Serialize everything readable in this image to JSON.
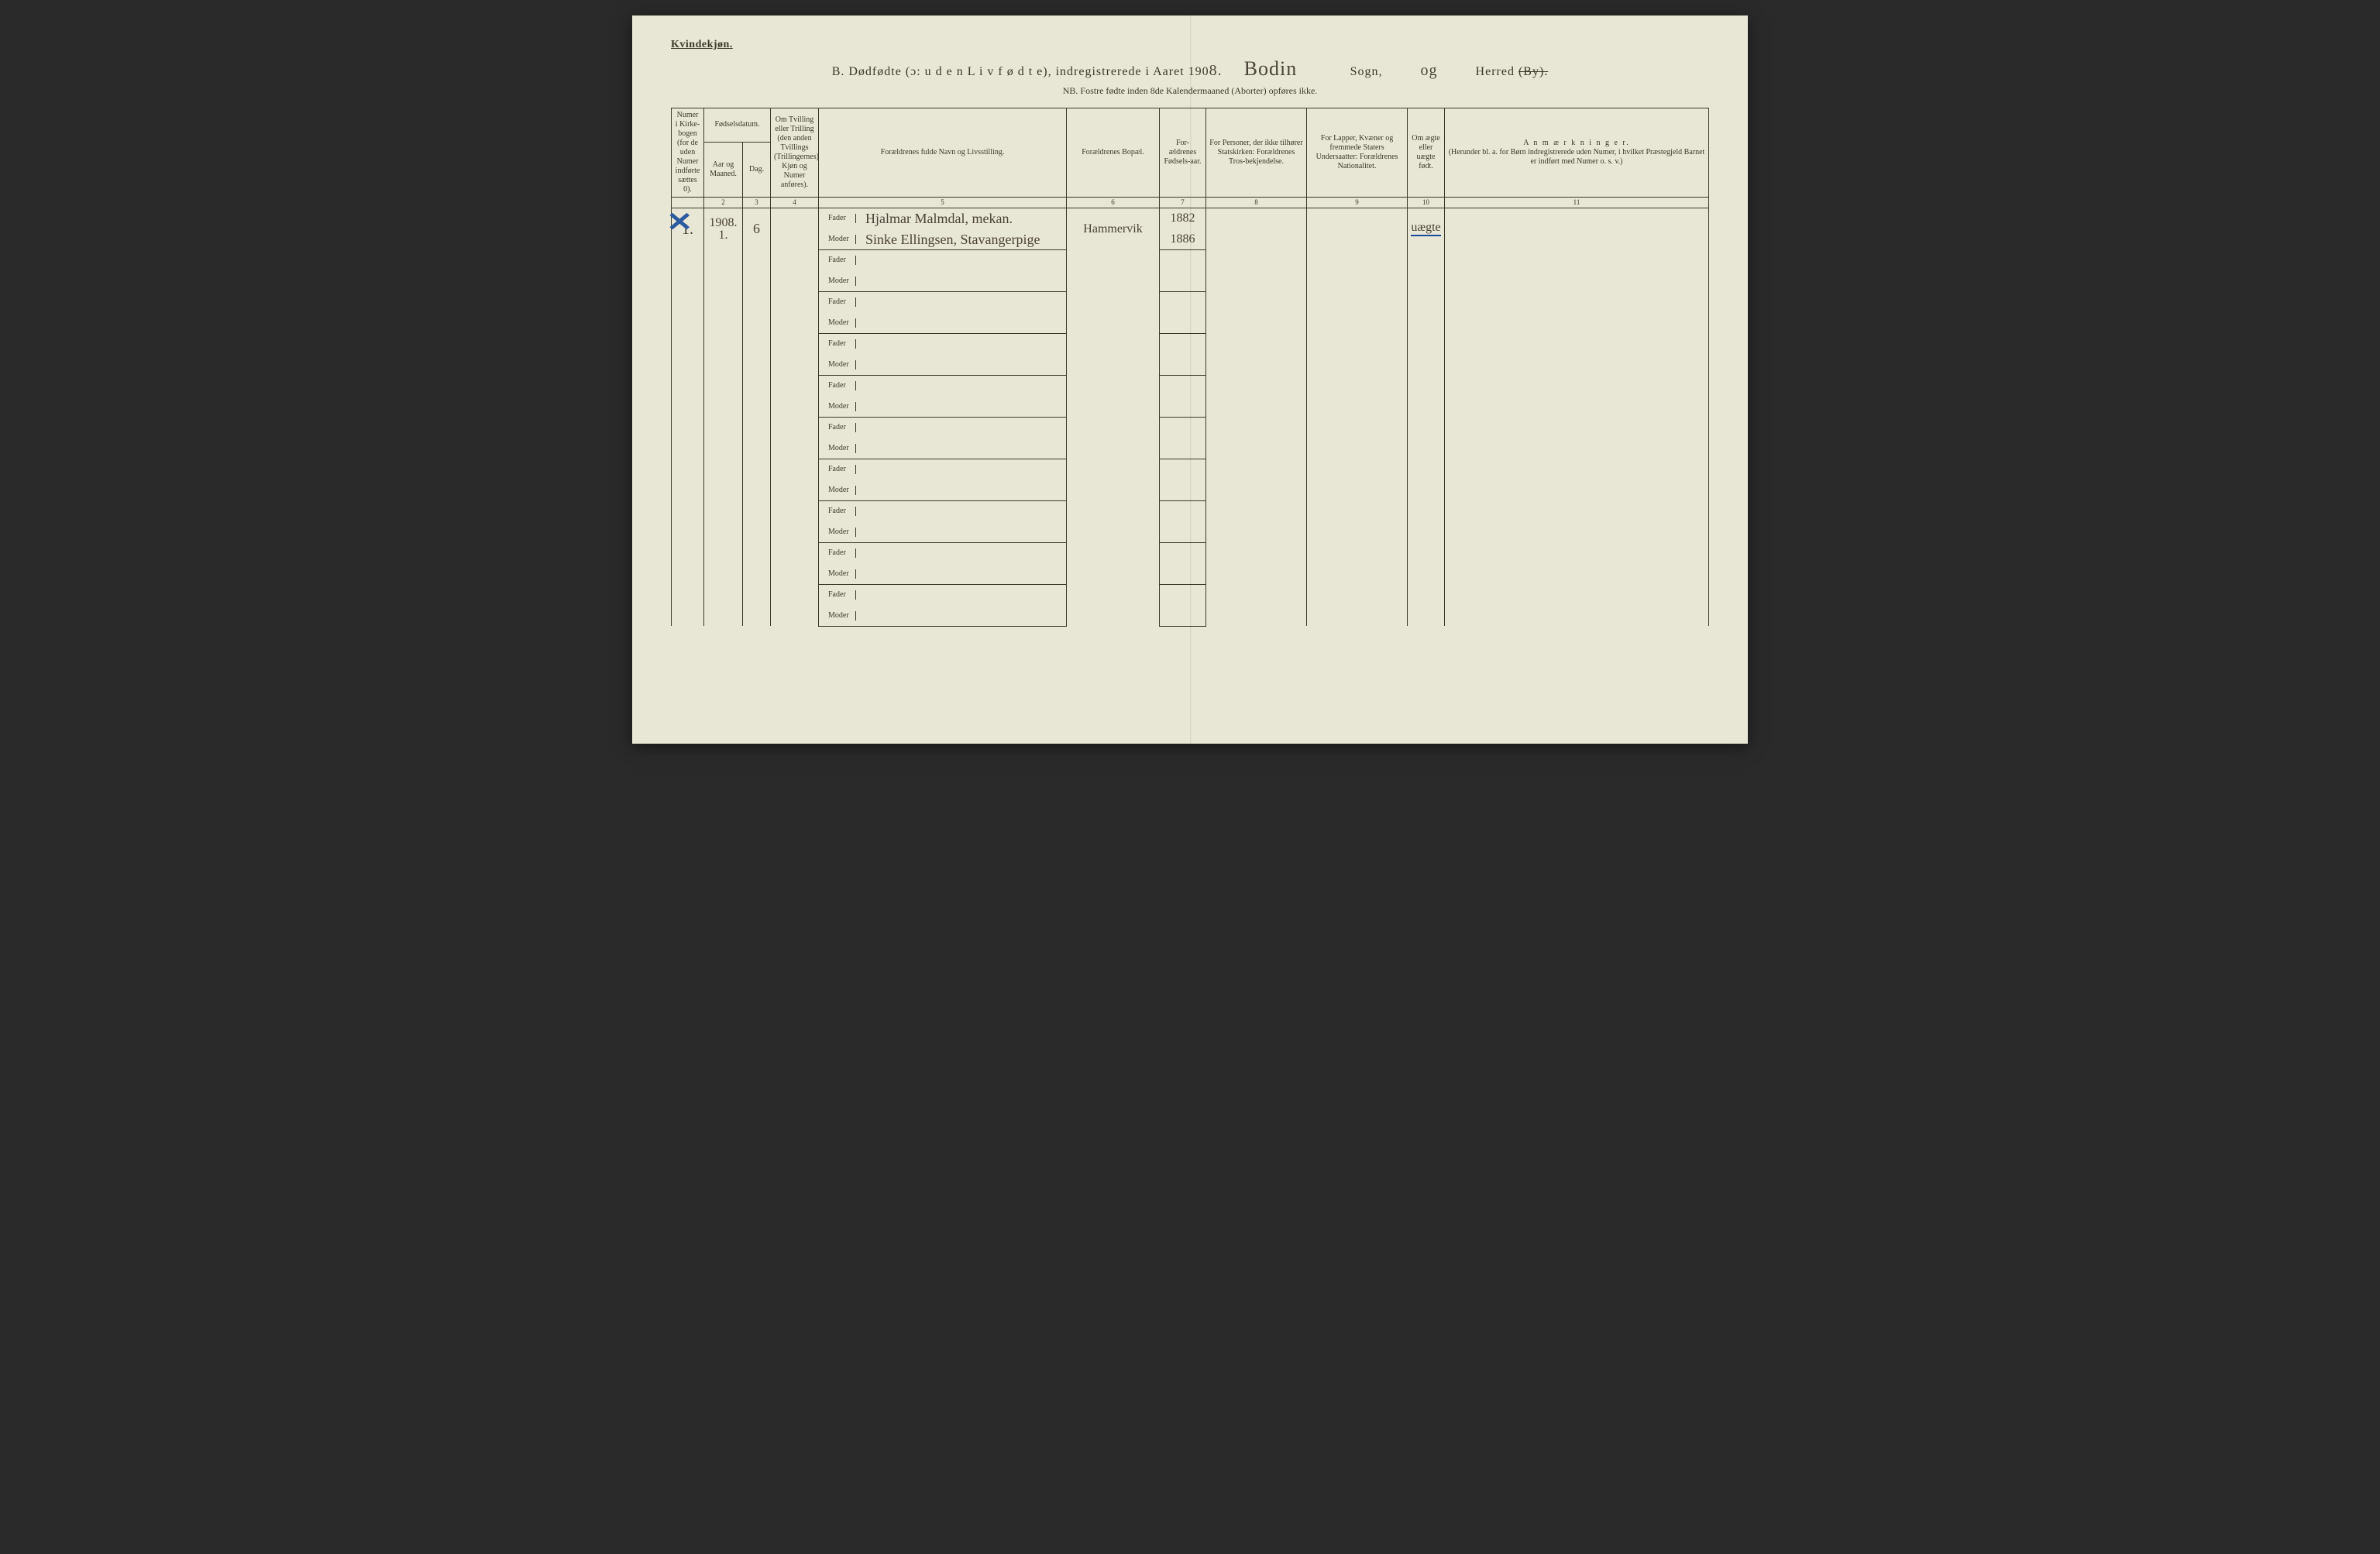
{
  "page": {
    "background_color": "#e8e6d4",
    "ink_color": "#3a3a2a",
    "handwriting_color": "#4a4236",
    "accent_blue": "#1a4aa0"
  },
  "header": {
    "gender": "Kvindekjøn.",
    "title_prefix": "B.  Dødfødte (ɔ: u d e n  L i v  f ø d t e), indregistrerede i Aaret 190",
    "year_suffix_hw": "8.",
    "parish_hw": "Bodin",
    "label_sogn": "Sogn,",
    "and_hw": "og",
    "label_herred": "Herred",
    "label_by_strike": "(By).",
    "subtitle": "NB.  Fostre fødte inden 8de Kalendermaaned (Aborter) opføres ikke."
  },
  "columns": {
    "c1": "Numer i Kirke-bogen (for de uden Numer indførte sættes 0).",
    "c2_group": "Fødselsdatum.",
    "c2a": "Aar og Maaned.",
    "c2b": "Dag.",
    "c4": "Om Tvilling eller Trilling (den anden Tvillings (Trillingernes) Kjøn og Numer anføres).",
    "c5": "Forældrenes fulde Navn og Livsstilling.",
    "c6": "Forældrenes Bopæl.",
    "c7": "For-ældrenes Fødsels-aar.",
    "c8": "For Personer, der ikke tilhører Statskirken: Forældrenes Tros-bekjendelse.",
    "c9": "For Lapper, Kvæner og fremmede Staters Undersaatter: Forældrenes Nationalitet.",
    "c10": "Om ægte eller uægte født.",
    "c11_title": "A n m æ r k n i n g e r.",
    "c11_sub": "(Herunder bl. a. for Børn indregistrerede uden Numer, i hvilket Præstegjeld Barnet er indført med Numer o. s. v.)",
    "nums": [
      "",
      "2",
      "3",
      "4",
      "5",
      "6",
      "7",
      "8",
      "9",
      "10",
      "11"
    ]
  },
  "role_labels": {
    "father": "Fader",
    "mother": "Moder"
  },
  "entries": [
    {
      "row_number_hw": "1.",
      "crossed": true,
      "year_month": "1908. 1.",
      "day": "6",
      "twin": "",
      "father_name": "Hjalmar Malmdal, mekan.",
      "mother_name": "Sinke Ellingsen, Stavangerpige",
      "residence": "Hammervik",
      "father_birth": "1882",
      "mother_birth": "1886",
      "legit": "uægte",
      "remarks": ""
    }
  ],
  "blank_pairs": 9
}
